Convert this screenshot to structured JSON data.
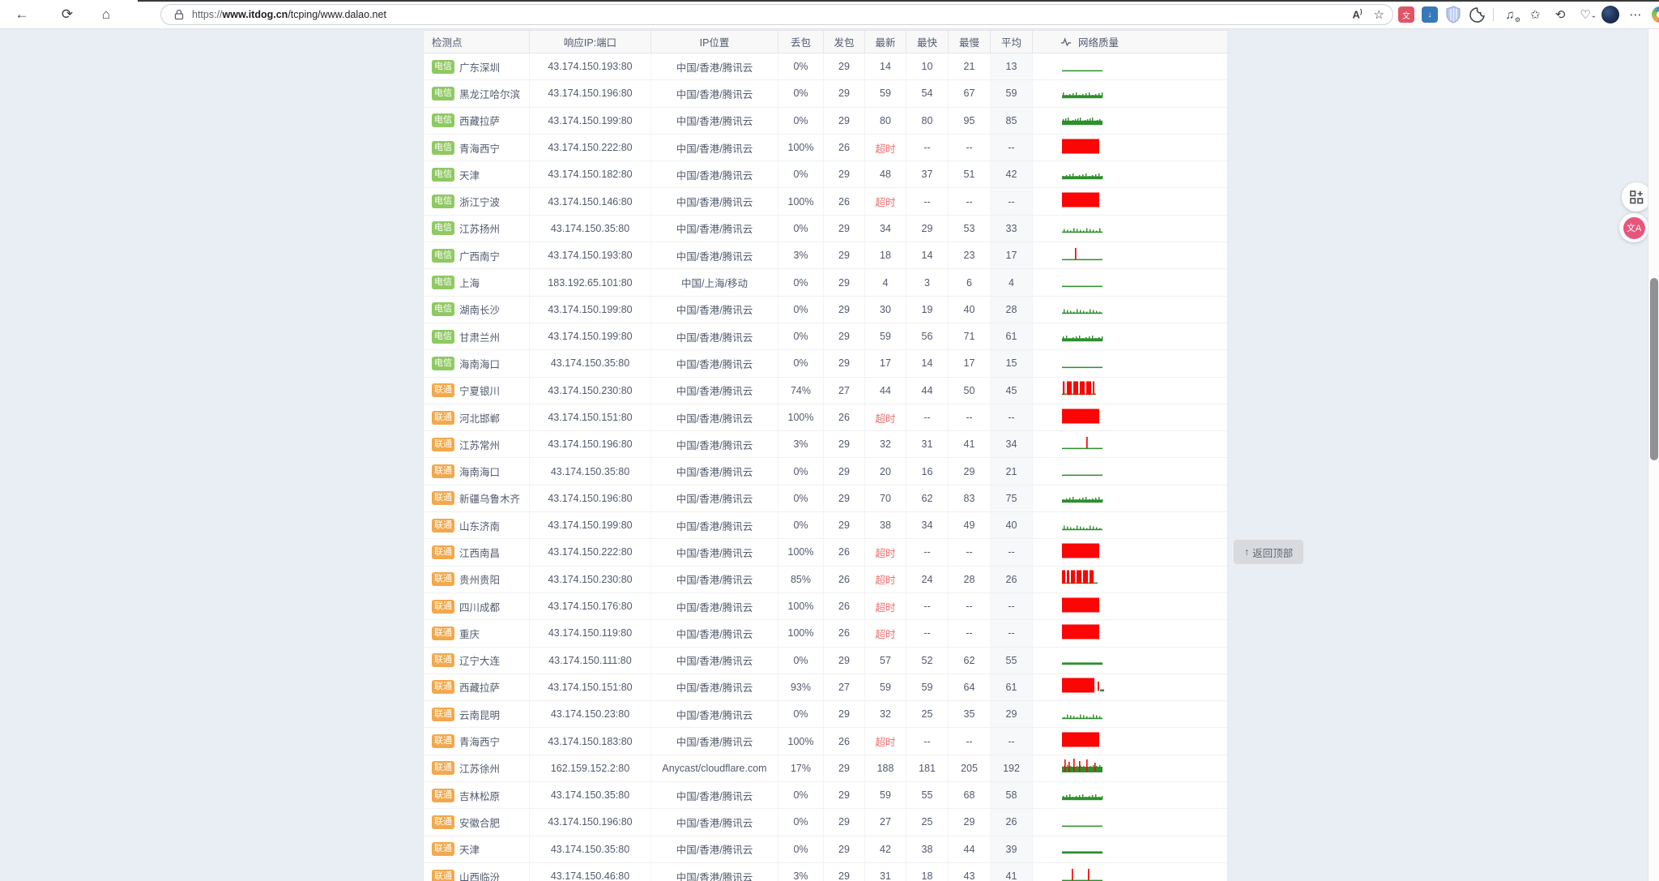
{
  "colors": {
    "telecom_tag": "#8fc962",
    "unicom_tag": "#f2a84c",
    "timeout_text": "#f26d6d",
    "spark_green": "#2c8f2c",
    "spark_red": "#fb0505",
    "page_bg": "#e9edf4"
  },
  "browser": {
    "url": {
      "scheme": "https://",
      "domain": "www.itdog.cn",
      "path": "/tcping/www.dalao.net"
    },
    "toolbar_left_icons": [
      "back",
      "reload",
      "home"
    ],
    "address_bar_icons": [
      "lock",
      "read-aloud",
      "favorite-star"
    ],
    "toolbar_right_icons": [
      "translate-extension",
      "download-extension",
      "shield-extension",
      "cookie-extension",
      "media-extension",
      "collections",
      "history",
      "browser-essentials",
      "profile-avatar",
      "more-menu",
      "copilot"
    ],
    "glyphs": {
      "back": "←",
      "reload": "⟳",
      "home": "⌂",
      "read_aloud": "A",
      "star": "☆",
      "translate_ext": "文",
      "download_ext": "↓",
      "media": "♫",
      "collections": "✩",
      "history": "⟲",
      "essentials": "♡",
      "more": "⋯",
      "grid_btn": "⊞",
      "float_translate": "文A"
    }
  },
  "back_to_top": {
    "arrow": "↑",
    "label": "返回顶部"
  },
  "table": {
    "headers": [
      "检测点",
      "响应IP:端口",
      "IP位置",
      "丢包",
      "发包",
      "最新",
      "最快",
      "最慢",
      "平均",
      "网络质量"
    ],
    "isp_labels": {
      "telecom": "电信",
      "unicom": "联通"
    },
    "rows": [
      {
        "isp": "telecom",
        "name": "广东深圳",
        "ip": "43.174.150.193:80",
        "location": "中国/香港/腾讯云",
        "loss": "0%",
        "sent": "29",
        "latest": "14",
        "timeout": false,
        "fastest": "10",
        "slowest": "21",
        "avg": "13",
        "spark": "thin"
      },
      {
        "isp": "telecom",
        "name": "黑龙江哈尔滨",
        "ip": "43.174.150.196:80",
        "location": "中国/香港/腾讯云",
        "loss": "0%",
        "sent": "29",
        "latest": "59",
        "timeout": false,
        "fastest": "54",
        "slowest": "67",
        "avg": "59",
        "spark": "band"
      },
      {
        "isp": "telecom",
        "name": "西藏拉萨",
        "ip": "43.174.150.199:80",
        "location": "中国/香港/腾讯云",
        "loss": "0%",
        "sent": "29",
        "latest": "80",
        "timeout": false,
        "fastest": "80",
        "slowest": "95",
        "avg": "85",
        "spark": "band2"
      },
      {
        "isp": "telecom",
        "name": "青海西宁",
        "ip": "43.174.150.222:80",
        "location": "中国/香港/腾讯云",
        "loss": "100%",
        "sent": "26",
        "latest": "超时",
        "timeout": true,
        "fastest": "--",
        "slowest": "--",
        "avg": "--",
        "spark": "red"
      },
      {
        "isp": "telecom",
        "name": "天津",
        "ip": "43.174.150.182:80",
        "location": "中国/香港/腾讯云",
        "loss": "0%",
        "sent": "29",
        "latest": "48",
        "timeout": false,
        "fastest": "37",
        "slowest": "51",
        "avg": "42",
        "spark": "band"
      },
      {
        "isp": "telecom",
        "name": "浙江宁波",
        "ip": "43.174.150.146:80",
        "location": "中国/香港/腾讯云",
        "loss": "100%",
        "sent": "26",
        "latest": "超时",
        "timeout": true,
        "fastest": "--",
        "slowest": "--",
        "avg": "--",
        "spark": "red"
      },
      {
        "isp": "telecom",
        "name": "江苏扬州",
        "ip": "43.174.150.35:80",
        "location": "中国/香港/腾讯云",
        "loss": "0%",
        "sent": "29",
        "latest": "34",
        "timeout": false,
        "fastest": "29",
        "slowest": "53",
        "avg": "33",
        "spark": "ticks"
      },
      {
        "isp": "telecom",
        "name": "广西南宁",
        "ip": "43.174.150.193:80",
        "location": "中国/香港/腾讯云",
        "loss": "3%",
        "sent": "29",
        "latest": "18",
        "timeout": false,
        "fastest": "14",
        "slowest": "23",
        "avg": "17",
        "spark": "spike:18"
      },
      {
        "isp": "telecom",
        "name": "上海",
        "ip": "183.192.65.101:80",
        "location": "中国/上海/移动",
        "loss": "0%",
        "sent": "29",
        "latest": "4",
        "timeout": false,
        "fastest": "3",
        "slowest": "6",
        "avg": "4",
        "spark": "thin"
      },
      {
        "isp": "telecom",
        "name": "湖南长沙",
        "ip": "43.174.150.199:80",
        "location": "中国/香港/腾讯云",
        "loss": "0%",
        "sent": "29",
        "latest": "30",
        "timeout": false,
        "fastest": "19",
        "slowest": "40",
        "avg": "28",
        "spark": "ticks"
      },
      {
        "isp": "telecom",
        "name": "甘肃兰州",
        "ip": "43.174.150.199:80",
        "location": "中国/香港/腾讯云",
        "loss": "0%",
        "sent": "29",
        "latest": "59",
        "timeout": false,
        "fastest": "56",
        "slowest": "71",
        "avg": "61",
        "spark": "band"
      },
      {
        "isp": "telecom",
        "name": "海南海口",
        "ip": "43.174.150.35:80",
        "location": "中国/香港/腾讯云",
        "loss": "0%",
        "sent": "29",
        "latest": "17",
        "timeout": false,
        "fastest": "14",
        "slowest": "17",
        "avg": "15",
        "spark": "thin"
      },
      {
        "isp": "unicom",
        "name": "宁夏银川",
        "ip": "43.174.150.230:80",
        "location": "中国/香港/腾讯云",
        "loss": "74%",
        "sent": "27",
        "latest": "44",
        "timeout": false,
        "fastest": "44",
        "slowest": "50",
        "avg": "45",
        "spark": "redbars"
      },
      {
        "isp": "unicom",
        "name": "河北邯郸",
        "ip": "43.174.150.151:80",
        "location": "中国/香港/腾讯云",
        "loss": "100%",
        "sent": "26",
        "latest": "超时",
        "timeout": true,
        "fastest": "--",
        "slowest": "--",
        "avg": "--",
        "spark": "red"
      },
      {
        "isp": "unicom",
        "name": "江苏常州",
        "ip": "43.174.150.196:80",
        "location": "中国/香港/腾讯云",
        "loss": "3%",
        "sent": "29",
        "latest": "32",
        "timeout": false,
        "fastest": "31",
        "slowest": "41",
        "avg": "34",
        "spark": "spike:32"
      },
      {
        "isp": "unicom",
        "name": "海南海口",
        "ip": "43.174.150.35:80",
        "location": "中国/香港/腾讯云",
        "loss": "0%",
        "sent": "29",
        "latest": "20",
        "timeout": false,
        "fastest": "16",
        "slowest": "29",
        "avg": "21",
        "spark": "thin"
      },
      {
        "isp": "unicom",
        "name": "新疆乌鲁木齐",
        "ip": "43.174.150.196:80",
        "location": "中国/香港/腾讯云",
        "loss": "0%",
        "sent": "29",
        "latest": "70",
        "timeout": false,
        "fastest": "62",
        "slowest": "83",
        "avg": "75",
        "spark": "band"
      },
      {
        "isp": "unicom",
        "name": "山东济南",
        "ip": "43.174.150.199:80",
        "location": "中国/香港/腾讯云",
        "loss": "0%",
        "sent": "29",
        "latest": "38",
        "timeout": false,
        "fastest": "34",
        "slowest": "49",
        "avg": "40",
        "spark": "ticks"
      },
      {
        "isp": "unicom",
        "name": "江西南昌",
        "ip": "43.174.150.222:80",
        "location": "中国/香港/腾讯云",
        "loss": "100%",
        "sent": "26",
        "latest": "超时",
        "timeout": true,
        "fastest": "--",
        "slowest": "--",
        "avg": "--",
        "spark": "red"
      },
      {
        "isp": "unicom",
        "name": "贵州贵阳",
        "ip": "43.174.150.230:80",
        "location": "中国/香港/腾讯云",
        "loss": "85%",
        "sent": "26",
        "latest": "超时",
        "timeout": true,
        "fastest": "24",
        "slowest": "28",
        "avg": "26",
        "spark": "redbars2"
      },
      {
        "isp": "unicom",
        "name": "四川成都",
        "ip": "43.174.150.176:80",
        "location": "中国/香港/腾讯云",
        "loss": "100%",
        "sent": "26",
        "latest": "超时",
        "timeout": true,
        "fastest": "--",
        "slowest": "--",
        "avg": "--",
        "spark": "red"
      },
      {
        "isp": "unicom",
        "name": "重庆",
        "ip": "43.174.150.119:80",
        "location": "中国/香港/腾讯云",
        "loss": "100%",
        "sent": "26",
        "latest": "超时",
        "timeout": true,
        "fastest": "--",
        "slowest": "--",
        "avg": "--",
        "spark": "red"
      },
      {
        "isp": "unicom",
        "name": "辽宁大连",
        "ip": "43.174.150.111:80",
        "location": "中国/香港/腾讯云",
        "loss": "0%",
        "sent": "29",
        "latest": "57",
        "timeout": false,
        "fastest": "52",
        "slowest": "62",
        "avg": "55",
        "spark": "line2"
      },
      {
        "isp": "unicom",
        "name": "西藏拉萨",
        "ip": "43.174.150.151:80",
        "location": "中国/香港/腾讯云",
        "loss": "93%",
        "sent": "27",
        "latest": "59",
        "timeout": false,
        "fastest": "59",
        "slowest": "64",
        "avg": "61",
        "spark": "redgap"
      },
      {
        "isp": "unicom",
        "name": "云南昆明",
        "ip": "43.174.150.23:80",
        "location": "中国/香港/腾讯云",
        "loss": "0%",
        "sent": "29",
        "latest": "32",
        "timeout": false,
        "fastest": "25",
        "slowest": "35",
        "avg": "29",
        "spark": "ticks"
      },
      {
        "isp": "unicom",
        "name": "青海西宁",
        "ip": "43.174.150.183:80",
        "location": "中国/香港/腾讯云",
        "loss": "100%",
        "sent": "26",
        "latest": "超时",
        "timeout": true,
        "fastest": "--",
        "slowest": "--",
        "avg": "--",
        "spark": "red"
      },
      {
        "isp": "unicom",
        "name": "江苏徐州",
        "ip": "162.159.152.2:80",
        "location": "Anycast/cloudflare.com",
        "loss": "17%",
        "sent": "29",
        "latest": "188",
        "timeout": false,
        "fastest": "181",
        "slowest": "205",
        "avg": "192",
        "spark": "bandspikes"
      },
      {
        "isp": "unicom",
        "name": "吉林松原",
        "ip": "43.174.150.35:80",
        "location": "中国/香港/腾讯云",
        "loss": "0%",
        "sent": "29",
        "latest": "59",
        "timeout": false,
        "fastest": "55",
        "slowest": "68",
        "avg": "58",
        "spark": "band"
      },
      {
        "isp": "unicom",
        "name": "安徽合肥",
        "ip": "43.174.150.196:80",
        "location": "中国/香港/腾讯云",
        "loss": "0%",
        "sent": "29",
        "latest": "27",
        "timeout": false,
        "fastest": "25",
        "slowest": "29",
        "avg": "26",
        "spark": "thin"
      },
      {
        "isp": "unicom",
        "name": "天津",
        "ip": "43.174.150.35:80",
        "location": "中国/香港/腾讯云",
        "loss": "0%",
        "sent": "29",
        "latest": "42",
        "timeout": false,
        "fastest": "38",
        "slowest": "44",
        "avg": "39",
        "spark": "line2"
      },
      {
        "isp": "unicom",
        "name": "山西临汾",
        "ip": "43.174.150.46:80",
        "location": "中国/香港/腾讯云",
        "loss": "3%",
        "sent": "29",
        "latest": "31",
        "timeout": false,
        "fastest": "18",
        "slowest": "43",
        "avg": "41",
        "spark": "spike2:14,34"
      }
    ]
  }
}
